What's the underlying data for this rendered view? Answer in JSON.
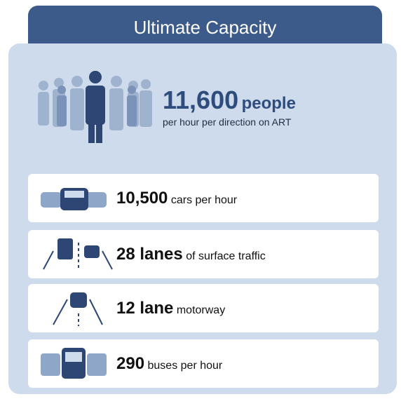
{
  "header": {
    "title": "Ultimate Capacity"
  },
  "headline": {
    "number": "11,600",
    "unit": "people",
    "detail": "per hour per direction on ART"
  },
  "rows": [
    {
      "number": "10,500",
      "text": "cars per hour"
    },
    {
      "number": "28 lanes",
      "text": "of surface traffic"
    },
    {
      "number": "12 lane",
      "text": "motorway"
    },
    {
      "number": "290",
      "text": "buses per hour"
    }
  ]
}
